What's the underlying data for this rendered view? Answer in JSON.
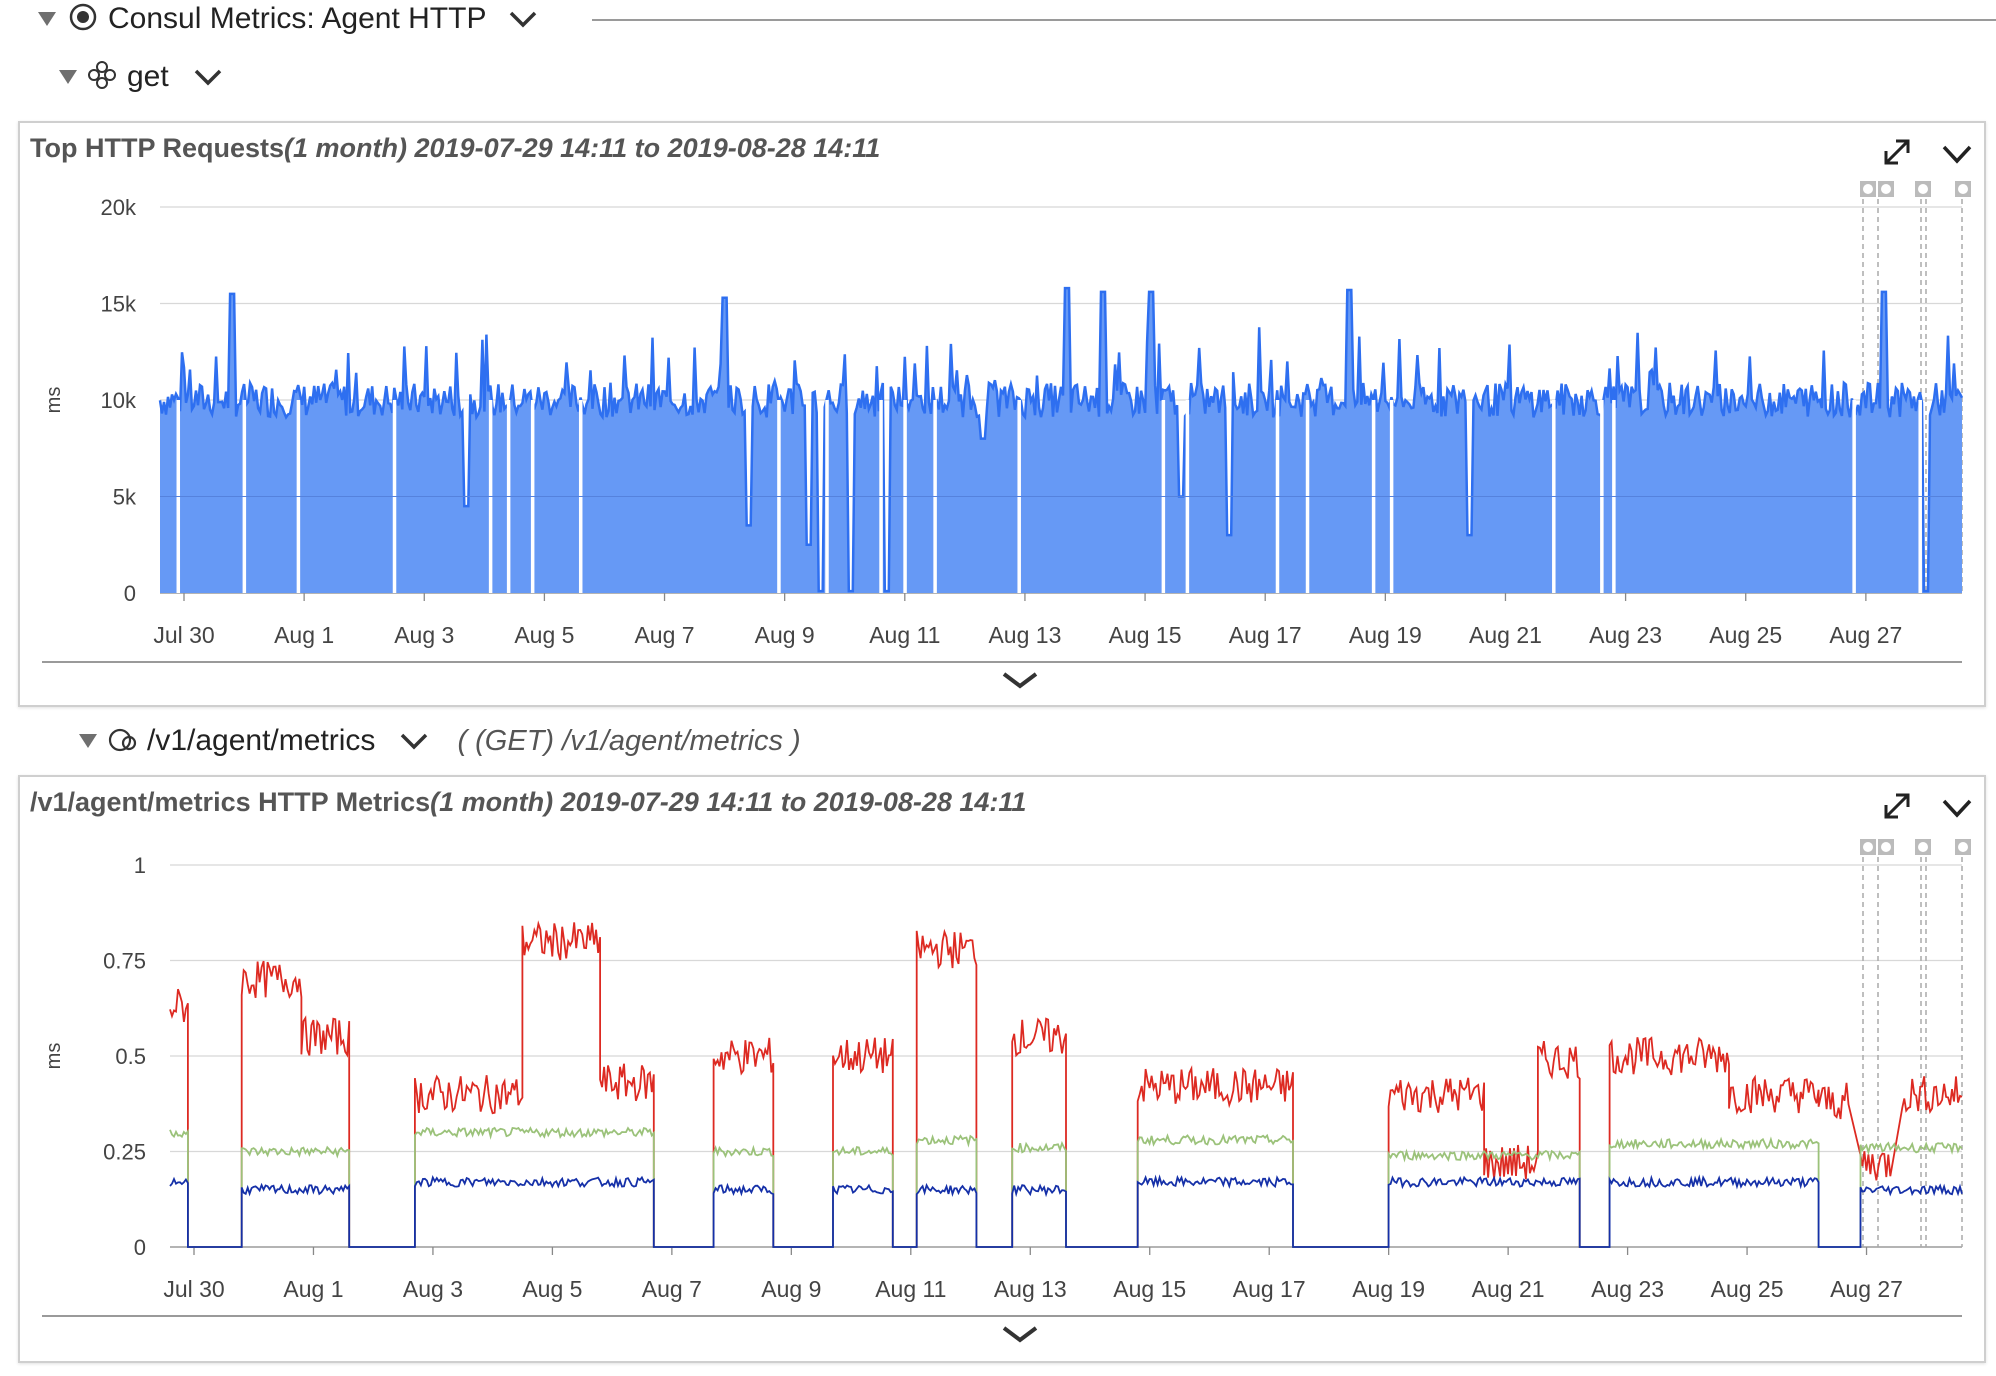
{
  "tree": {
    "root_label": "Consul Metrics: Agent HTTP",
    "group_label": "get",
    "instance_label": "/v1/agent/metrics",
    "instance_desc": "( (GET) /v1/agent/metrics )"
  },
  "panels": [
    {
      "title_main": "Top HTTP Requests",
      "title_range": "(1 month) 2019-07-29 14:11 to 2019-08-28 14:11"
    },
    {
      "title_main": "/v1/agent/metrics HTTP Metrics",
      "title_range": "(1 month) 2019-07-29 14:11 to 2019-08-28 14:11"
    }
  ],
  "chart_data": [
    {
      "type": "area",
      "ylabel": "ms",
      "ylim": [
        0,
        20000
      ],
      "y_ticks": [
        "0",
        "5k",
        "10k",
        "15k",
        "20k"
      ],
      "x_ticks": [
        "Jul 30",
        "Aug 1",
        "Aug 3",
        "Aug 5",
        "Aug 7",
        "Aug 9",
        "Aug 11",
        "Aug 13",
        "Aug 15",
        "Aug 17",
        "Aug 19",
        "Aug 21",
        "Aug 23",
        "Aug 25",
        "Aug 27"
      ],
      "x_range_days": [
        0,
        30
      ],
      "grid": true,
      "colors": {
        "fill": "#6699f5",
        "line": "#2e6ff0"
      },
      "series": [
        {
          "baseline": 10000,
          "spikes": [
            [
              1.2,
              15500
            ],
            [
              9.4,
              15300
            ],
            [
              15.1,
              15800
            ],
            [
              15.7,
              15600
            ],
            [
              16.5,
              15600
            ],
            [
              19.8,
              15700
            ],
            [
              28.7,
              15600
            ]
          ],
          "gaps": [
            0.3,
            1.4,
            2.3,
            3.9,
            5.5,
            5.8,
            6.2,
            7.0,
            10.3,
            11.1,
            12.0,
            12.4,
            12.9,
            14.3,
            16.7,
            17.1,
            18.6,
            19.1,
            20.2,
            20.5,
            23.2,
            24.0,
            24.2,
            28.2,
            29.3
          ],
          "dips": [
            [
              5.1,
              4500
            ],
            [
              9.8,
              3500
            ],
            [
              10.8,
              2500
            ],
            [
              11.0,
              100
            ],
            [
              11.5,
              100
            ],
            [
              12.1,
              100
            ],
            [
              13.7,
              8000
            ],
            [
              17.0,
              5000
            ],
            [
              17.8,
              3000
            ],
            [
              21.8,
              3000
            ],
            [
              29.4,
              100
            ]
          ]
        }
      ]
    },
    {
      "type": "line",
      "ylabel": "ms",
      "ylim": [
        0,
        1
      ],
      "y_ticks": [
        "0",
        "0.25",
        "0.5",
        "0.75",
        "1"
      ],
      "x_ticks": [
        "Jul 30",
        "Aug 1",
        "Aug 3",
        "Aug 5",
        "Aug 7",
        "Aug 9",
        "Aug 11",
        "Aug 13",
        "Aug 15",
        "Aug 17",
        "Aug 19",
        "Aug 21",
        "Aug 23",
        "Aug 25",
        "Aug 27"
      ],
      "x_range_days": [
        0,
        30
      ],
      "grid": true,
      "colors": {
        "red": "#dd2a22",
        "green": "#9bc27a",
        "blue": "#1530a8"
      },
      "series": [
        {
          "color": "red",
          "segments": [
            [
              0,
              0.3,
              0.63
            ],
            [
              1.2,
              2.2,
              0.7
            ],
            [
              2.2,
              3.0,
              0.55
            ],
            [
              4.1,
              5.9,
              0.4
            ],
            [
              5.9,
              7.2,
              0.8
            ],
            [
              7.2,
              8.1,
              0.43
            ],
            [
              9.1,
              10.1,
              0.5
            ],
            [
              11.1,
              12.1,
              0.5
            ],
            [
              12.5,
              13.5,
              0.78
            ],
            [
              14.1,
              15.0,
              0.55
            ],
            [
              16.2,
              18.8,
              0.42
            ],
            [
              20.4,
              22.0,
              0.4
            ],
            [
              22.0,
              22.9,
              0.22
            ],
            [
              22.9,
              23.6,
              0.49
            ],
            [
              24.1,
              26.1,
              0.5
            ],
            [
              26.1,
              27.6,
              0.4
            ],
            [
              27.6,
              28.1,
              0.38
            ],
            [
              28.3,
              28.8,
              0.22
            ],
            [
              29.0,
              30.0,
              0.4
            ]
          ]
        },
        {
          "color": "green",
          "segments": [
            [
              0,
              0.3,
              0.3
            ],
            [
              1.2,
              3.0,
              0.25
            ],
            [
              4.1,
              8.1,
              0.3
            ],
            [
              9.1,
              10.1,
              0.25
            ],
            [
              11.1,
              12.1,
              0.25
            ],
            [
              12.5,
              13.5,
              0.28
            ],
            [
              14.1,
              15.0,
              0.26
            ],
            [
              16.2,
              18.8,
              0.28
            ],
            [
              20.4,
              23.6,
              0.24
            ],
            [
              24.1,
              27.6,
              0.27
            ],
            [
              28.3,
              30.0,
              0.26
            ]
          ]
        },
        {
          "color": "blue",
          "segments": [
            [
              0,
              0.3,
              0.17
            ],
            [
              1.2,
              3.0,
              0.15
            ],
            [
              4.1,
              8.1,
              0.17
            ],
            [
              9.1,
              10.1,
              0.15
            ],
            [
              11.1,
              12.1,
              0.15
            ],
            [
              12.5,
              13.5,
              0.15
            ],
            [
              14.1,
              15.0,
              0.15
            ],
            [
              16.2,
              18.8,
              0.17
            ],
            [
              20.4,
              23.6,
              0.17
            ],
            [
              24.1,
              27.6,
              0.17
            ],
            [
              28.3,
              30.0,
              0.15
            ]
          ]
        }
      ]
    }
  ]
}
